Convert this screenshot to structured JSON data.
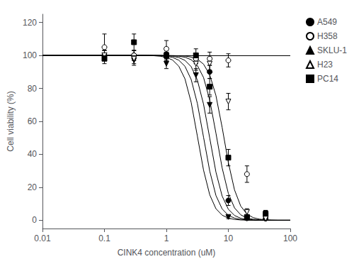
{
  "chart_data": {
    "type": "scatter",
    "xlabel": "CINK4 concentration (uM)",
    "ylabel": "Cell viability (%)",
    "log": "x",
    "xlim": [
      0.01,
      100
    ],
    "xticks": [
      0.01,
      0.1,
      1,
      10,
      100
    ],
    "ylim": [
      -5,
      125
    ],
    "yticks": [
      0,
      20,
      40,
      60,
      80,
      100,
      120
    ],
    "grid": false,
    "legend": "upper right",
    "color": "black",
    "hline": 100,
    "fit_x": [
      0.01,
      0.01259,
      0.01585,
      0.01995,
      0.02512,
      0.03162,
      0.03981,
      0.05012,
      0.0631,
      0.07943,
      0.1,
      0.1259,
      0.1585,
      0.1995,
      0.2512,
      0.3162,
      0.3981,
      0.5012,
      0.631,
      0.7943,
      1,
      1.259,
      1.585,
      1.995,
      2.512,
      3.162,
      3.981,
      5.012,
      6.31,
      7.943,
      10,
      12.59,
      15.85,
      19.95,
      25.12,
      31.62,
      39.81,
      50.12,
      63.1,
      79.43,
      100
    ],
    "series": [
      {
        "name": "A549",
        "marker": "circle",
        "color": "black",
        "x": [
          0.1,
          0.3,
          1.0,
          3.0,
          5.0,
          10.0,
          20.0,
          40.0
        ],
        "values": [
          100,
          100,
          100,
          98,
          90,
          12,
          2,
          1
        ],
        "errors": [
          3,
          3,
          2,
          3,
          4,
          3,
          1,
          1
        ],
        "fit": [
          100.0,
          100.0,
          100.0,
          100.0,
          100.0,
          100.0,
          100.0,
          100.0,
          100.0,
          100.0,
          100.0,
          100.0,
          100.0,
          100.0,
          100.0,
          100.0,
          100.0,
          100.0,
          100.0,
          99.9,
          99.8,
          99.5,
          98.7,
          97.0,
          93.2,
          85.1,
          70.4,
          49.8,
          29.2,
          14.7,
          6.7,
          2.9,
          1.2,
          0.5,
          0.2,
          0.1,
          0.0,
          0.0,
          0.0,
          0.0,
          0.0
        ]
      },
      {
        "name": "H358",
        "marker": "open_circle",
        "color": "black",
        "x": [
          0.1,
          0.3,
          1.0,
          3.0,
          5.0,
          10.0,
          20.0,
          40.0
        ],
        "values": [
          105,
          100,
          104,
          98,
          98,
          97,
          28,
          4
        ],
        "errors": [
          8,
          3,
          5,
          3,
          4,
          4,
          5,
          2
        ],
        "fit": [
          100.0,
          100.0,
          100.0,
          100.0,
          100.0,
          100.0,
          100.0,
          100.0,
          100.0,
          100.0,
          100.0,
          100.0,
          100.0,
          100.0,
          100.0,
          100.0,
          100.0,
          100.0,
          100.0,
          100.0,
          100.0,
          99.9,
          99.8,
          99.6,
          99.0,
          97.7,
          94.7,
          88.2,
          75.6,
          56.4,
          35.0,
          18.4,
          8.6,
          3.8,
          1.6,
          0.7,
          0.3,
          0.1,
          0.0,
          0.0,
          0.0
        ]
      },
      {
        "name": "SKLU-1",
        "marker": "triangle_down",
        "color": "black",
        "x": [
          0.1,
          0.3,
          1.0,
          3.0,
          5.0,
          10.0,
          20.0,
          40.0
        ],
        "values": [
          100,
          97,
          95,
          88,
          70,
          2,
          1,
          1
        ],
        "errors": [
          3,
          3,
          3,
          4,
          5,
          1,
          1,
          1
        ],
        "fit": [
          100.0,
          100.0,
          100.0,
          100.0,
          100.0,
          100.0,
          100.0,
          100.0,
          100.0,
          100.0,
          100.0,
          100.0,
          100.0,
          100.0,
          100.0,
          100.0,
          100.0,
          99.9,
          99.8,
          99.5,
          98.8,
          97.2,
          93.5,
          85.8,
          71.5,
          51.1,
          30.4,
          15.4,
          7.0,
          3.1,
          1.3,
          0.5,
          0.2,
          0.1,
          0.0,
          0.0,
          0.0,
          0.0,
          0.0,
          0.0,
          0.0
        ]
      },
      {
        "name": "H23",
        "marker": "open_triangle_down",
        "color": "black",
        "x": [
          0.1,
          0.3,
          1.0,
          3.0,
          5.0,
          10.0,
          20.0,
          40.0
        ],
        "values": [
          100,
          98,
          100,
          95,
          95,
          72,
          5,
          1
        ],
        "errors": [
          3,
          3,
          3,
          4,
          4,
          5,
          2,
          1
        ],
        "fit": [
          100.0,
          100.0,
          100.0,
          100.0,
          100.0,
          100.0,
          100.0,
          100.0,
          100.0,
          100.0,
          100.0,
          100.0,
          100.0,
          100.0,
          100.0,
          100.0,
          100.0,
          100.0,
          100.0,
          100.0,
          99.9,
          99.8,
          99.5,
          98.9,
          97.4,
          93.9,
          86.6,
          72.9,
          52.8,
          31.8,
          16.3,
          7.5,
          3.3,
          1.4,
          0.6,
          0.2,
          0.1,
          0.0,
          0.0,
          0.0,
          0.0
        ]
      },
      {
        "name": "PC14",
        "marker": "square",
        "color": "black",
        "x": [
          0.1,
          0.3,
          1.0,
          3.0,
          5.0,
          10.0,
          20.0,
          40.0
        ],
        "values": [
          98,
          108,
          100,
          100,
          81,
          38,
          2,
          4
        ],
        "errors": [
          3,
          5,
          4,
          4,
          5,
          5,
          1,
          2
        ],
        "fit": [
          100.0,
          100.0,
          100.0,
          100.0,
          100.0,
          100.0,
          100.0,
          100.0,
          100.0,
          100.0,
          100.0,
          100.0,
          100.0,
          100.0,
          100.0,
          100.0,
          100.0,
          100.0,
          99.9,
          99.8,
          99.5,
          98.8,
          97.1,
          93.4,
          85.4,
          70.9,
          50.4,
          29.8,
          15.0,
          6.9,
          3.0,
          1.3,
          0.5,
          0.2,
          0.1,
          0.0,
          0.0,
          0.0,
          0.0,
          0.0,
          0.0
        ]
      }
    ]
  }
}
